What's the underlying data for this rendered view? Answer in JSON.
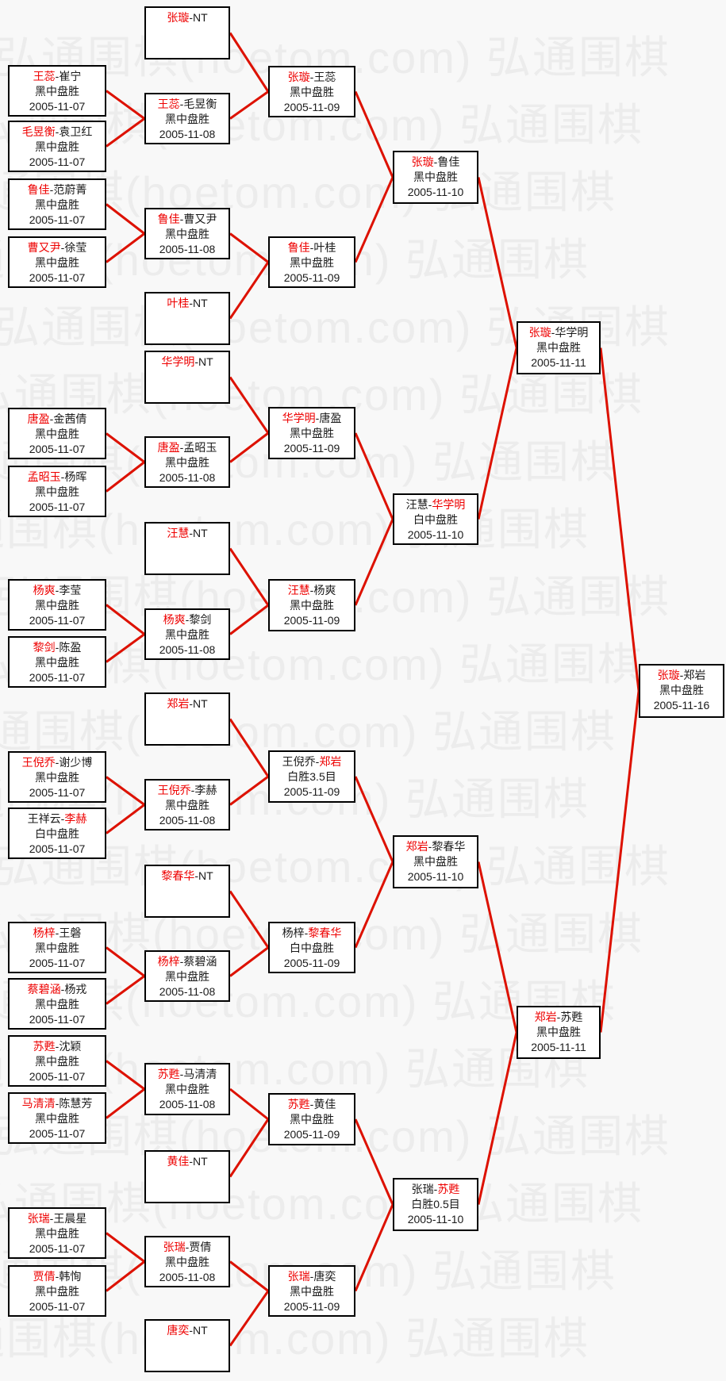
{
  "watermark": {
    "full": "弘通围棋(hoetom.com)",
    "short": "弘通围棋"
  },
  "name_separator": "-",
  "colors": {
    "background": "#f8f8f8",
    "watermark": "#ececec",
    "box_background": "#ffffff",
    "box_border": "#000000",
    "winner_red": "#ee0000",
    "line_red": "#dd1100"
  },
  "bracket": {
    "rounds": [
      {
        "id": "round-1",
        "matches": [
          {
            "id": "a1",
            "p1": "王蕊",
            "p2": "崔宁",
            "red": "p1",
            "result": "黑中盘胜",
            "date": "2005-11-07"
          },
          {
            "id": "a2",
            "p1": "毛昱衡",
            "p2": "袁卫红",
            "red": "p1",
            "result": "黑中盘胜",
            "date": "2005-11-07"
          },
          {
            "id": "a3",
            "p1": "鲁佳",
            "p2": "范蔚菁",
            "red": "p1",
            "result": "黑中盘胜",
            "date": "2005-11-07"
          },
          {
            "id": "a4",
            "p1": "曹又尹",
            "p2": "徐莹",
            "red": "p1",
            "result": "黑中盘胜",
            "date": "2005-11-07"
          },
          {
            "id": "a5",
            "p1": "唐盈",
            "p2": "金茜倩",
            "red": "p1",
            "result": "黑中盘胜",
            "date": "2005-11-07"
          },
          {
            "id": "a6",
            "p1": "孟昭玉",
            "p2": "杨晖",
            "red": "p1",
            "result": "黑中盘胜",
            "date": "2005-11-07"
          },
          {
            "id": "a7",
            "p1": "杨爽",
            "p2": "李莹",
            "red": "p1",
            "result": "黑中盘胜",
            "date": "2005-11-07"
          },
          {
            "id": "a8",
            "p1": "黎剑",
            "p2": "陈盈",
            "red": "p1",
            "result": "黑中盘胜",
            "date": "2005-11-07"
          },
          {
            "id": "a9",
            "p1": "王倪乔",
            "p2": "谢少博",
            "red": "p1",
            "result": "黑中盘胜",
            "date": "2005-11-07"
          },
          {
            "id": "a10",
            "p1": "王祥云",
            "p2": "李赫",
            "red": "p2",
            "result": "白中盘胜",
            "date": "2005-11-07"
          },
          {
            "id": "a11",
            "p1": "杨梓",
            "p2": "王磐",
            "red": "p1",
            "result": "黑中盘胜",
            "date": "2005-11-07"
          },
          {
            "id": "a12",
            "p1": "蔡碧涵",
            "p2": "杨戎",
            "red": "p1",
            "result": "黑中盘胜",
            "date": "2005-11-07"
          },
          {
            "id": "a13",
            "p1": "苏甦",
            "p2": "沈颖",
            "red": "p1",
            "result": "黑中盘胜",
            "date": "2005-11-07"
          },
          {
            "id": "a14",
            "p1": "马清清",
            "p2": "陈慧芳",
            "red": "p1",
            "result": "黑中盘胜",
            "date": "2005-11-07"
          },
          {
            "id": "a15",
            "p1": "张瑞",
            "p2": "王晨星",
            "red": "p1",
            "result": "黑中盘胜",
            "date": "2005-11-07"
          },
          {
            "id": "a16",
            "p1": "贾倩",
            "p2": "韩恂",
            "red": "p1",
            "result": "黑中盘胜",
            "date": "2005-11-07"
          }
        ]
      },
      {
        "id": "round-2",
        "matches": [
          {
            "id": "b1",
            "p1": "张璇",
            "p2": "NT",
            "red": "p1",
            "result": "",
            "date": ""
          },
          {
            "id": "b2",
            "p1": "王蕊",
            "p2": "毛昱衡",
            "red": "p1",
            "result": "黑中盘胜",
            "date": "2005-11-08"
          },
          {
            "id": "b3",
            "p1": "鲁佳",
            "p2": "曹又尹",
            "red": "p1",
            "result": "黑中盘胜",
            "date": "2005-11-08"
          },
          {
            "id": "b4",
            "p1": "叶桂",
            "p2": "NT",
            "red": "p1",
            "result": "",
            "date": ""
          },
          {
            "id": "b5",
            "p1": "华学明",
            "p2": "NT",
            "red": "p1",
            "result": "",
            "date": ""
          },
          {
            "id": "b6",
            "p1": "唐盈",
            "p2": "孟昭玉",
            "red": "p1",
            "result": "黑中盘胜",
            "date": "2005-11-08"
          },
          {
            "id": "b7",
            "p1": "汪慧",
            "p2": "NT",
            "red": "p1",
            "result": "",
            "date": ""
          },
          {
            "id": "b8",
            "p1": "杨爽",
            "p2": "黎剑",
            "red": "p1",
            "result": "黑中盘胜",
            "date": "2005-11-08"
          },
          {
            "id": "b9",
            "p1": "郑岩",
            "p2": "NT",
            "red": "p1",
            "result": "",
            "date": ""
          },
          {
            "id": "b10",
            "p1": "王倪乔",
            "p2": "李赫",
            "red": "p1",
            "result": "黑中盘胜",
            "date": "2005-11-08"
          },
          {
            "id": "b11",
            "p1": "黎春华",
            "p2": "NT",
            "red": "p1",
            "result": "",
            "date": ""
          },
          {
            "id": "b12",
            "p1": "杨梓",
            "p2": "蔡碧涵",
            "red": "p1",
            "result": "黑中盘胜",
            "date": "2005-11-08"
          },
          {
            "id": "b13",
            "p1": "苏甦",
            "p2": "马清清",
            "red": "p1",
            "result": "黑中盘胜",
            "date": "2005-11-08"
          },
          {
            "id": "b14",
            "p1": "黄佳",
            "p2": "NT",
            "red": "p1",
            "result": "",
            "date": ""
          },
          {
            "id": "b15",
            "p1": "张瑞",
            "p2": "贾倩",
            "red": "p1",
            "result": "黑中盘胜",
            "date": "2005-11-08"
          },
          {
            "id": "b16",
            "p1": "唐奕",
            "p2": "NT",
            "red": "p1",
            "result": "",
            "date": ""
          }
        ]
      },
      {
        "id": "round-3",
        "matches": [
          {
            "id": "c1",
            "p1": "张璇",
            "p2": "王蕊",
            "red": "p1",
            "result": "黑中盘胜",
            "date": "2005-11-09"
          },
          {
            "id": "c2",
            "p1": "鲁佳",
            "p2": "叶桂",
            "red": "p1",
            "result": "黑中盘胜",
            "date": "2005-11-09"
          },
          {
            "id": "c3",
            "p1": "华学明",
            "p2": "唐盈",
            "red": "p1",
            "result": "黑中盘胜",
            "date": "2005-11-09"
          },
          {
            "id": "c4",
            "p1": "汪慧",
            "p2": "杨爽",
            "red": "p1",
            "result": "黑中盘胜",
            "date": "2005-11-09"
          },
          {
            "id": "c5",
            "p1": "王倪乔",
            "p2": "郑岩",
            "red": "p2",
            "result": "白胜3.5目",
            "date": "2005-11-09"
          },
          {
            "id": "c6",
            "p1": "杨梓",
            "p2": "黎春华",
            "red": "p2",
            "result": "白中盘胜",
            "date": "2005-11-09"
          },
          {
            "id": "c7",
            "p1": "苏甦",
            "p2": "黄佳",
            "red": "p1",
            "result": "黑中盘胜",
            "date": "2005-11-09"
          },
          {
            "id": "c8",
            "p1": "张瑞",
            "p2": "唐奕",
            "red": "p1",
            "result": "黑中盘胜",
            "date": "2005-11-09"
          }
        ]
      },
      {
        "id": "quarterfinal",
        "matches": [
          {
            "id": "d1",
            "p1": "张璇",
            "p2": "鲁佳",
            "red": "p1",
            "result": "黑中盘胜",
            "date": "2005-11-10"
          },
          {
            "id": "d2",
            "p1": "汪慧",
            "p2": "华学明",
            "red": "p2",
            "result": "白中盘胜",
            "date": "2005-11-10"
          },
          {
            "id": "d3",
            "p1": "郑岩",
            "p2": "黎春华",
            "red": "p1",
            "result": "黑中盘胜",
            "date": "2005-11-10"
          },
          {
            "id": "d4",
            "p1": "张瑞",
            "p2": "苏甦",
            "red": "p2",
            "result": "白胜0.5目",
            "date": "2005-11-10"
          }
        ]
      },
      {
        "id": "semifinal",
        "matches": [
          {
            "id": "e1",
            "p1": "张璇",
            "p2": "华学明",
            "red": "p1",
            "result": "黑中盘胜",
            "date": "2005-11-11"
          },
          {
            "id": "e2",
            "p1": "郑岩",
            "p2": "苏甦",
            "red": "p1",
            "result": "黑中盘胜",
            "date": "2005-11-11"
          }
        ]
      },
      {
        "id": "final",
        "matches": [
          {
            "id": "f1",
            "p1": "张璇",
            "p2": "郑岩",
            "red": "p1",
            "result": "黑中盘胜",
            "date": "2005-11-16"
          }
        ]
      }
    ]
  }
}
